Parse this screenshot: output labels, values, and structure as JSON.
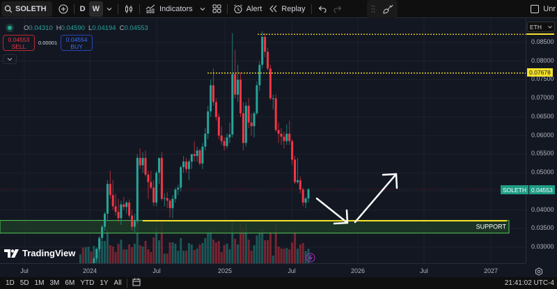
{
  "toolbar": {
    "symbol": "SOLETH",
    "intervals": [
      "D",
      "W"
    ],
    "active_interval": "W",
    "indicators_label": "Indicators",
    "alert_label": "Alert",
    "replay_label": "Replay",
    "right_label": "Unr"
  },
  "legend": {
    "o_label": "O",
    "o_value": "0.04310",
    "h_label": "H",
    "h_value": "0.04590",
    "l_label": "L",
    "l_value": "0.04194",
    "c_label": "C",
    "c_value": "0.04553"
  },
  "trade": {
    "sell_price": "0.04553",
    "sell_label": "SELL",
    "spread": "0.00001",
    "buy_price": "0.04554",
    "buy_label": "BUY"
  },
  "price_axis": {
    "currency": "ETH",
    "ticks": [
      "0.08500",
      "0.08000",
      "0.07500",
      "0.07000",
      "0.06500",
      "0.06000",
      "0.05500",
      "0.05000",
      "0.04000",
      "0.03500",
      "0.03000"
    ],
    "marker_price": "0.07678",
    "current_symbol": "SOLETH",
    "current_price": "0.04553"
  },
  "time_axis": {
    "ticks": [
      "Jul",
      "2024",
      "Jul",
      "2025",
      "Jul",
      "2026",
      "Jul",
      "2027"
    ]
  },
  "bottombar": {
    "ranges": [
      "1D",
      "5D",
      "1M",
      "3M",
      "6M",
      "YTD",
      "1Y",
      "All"
    ],
    "clock": "21:41:02 UTC-4"
  },
  "annotations": {
    "support_label": "SUPPORT",
    "logo_text": "TradingView"
  },
  "colors": {
    "up": "#26a69a",
    "down": "#f23645",
    "support_fill": "#1f3a26",
    "support_border": "#4caf50",
    "level_line": "#f7e22a",
    "background": "#131722"
  },
  "chart_data": {
    "type": "candlestick",
    "title": "SOLETH · 1W",
    "ylabel": "ETH",
    "ylim": [
      0.0275,
      0.0905
    ],
    "x_ticks": [
      "Jul 2023",
      "2024",
      "Jul 2024",
      "2025",
      "Jul 2025",
      "2026",
      "Jul 2026",
      "2027"
    ],
    "horizontal_levels": [
      {
        "price": 0.0872,
        "style": "dotted",
        "color": "#f7e22a"
      },
      {
        "price": 0.07678,
        "style": "dotted",
        "color": "#f7e22a"
      },
      {
        "price": 0.0371,
        "style": "solid",
        "color": "#f7e22a"
      }
    ],
    "support_zone": [
      0.0338,
      0.0372
    ],
    "last": {
      "open": 0.0431,
      "high": 0.0459,
      "low": 0.04194,
      "close": 0.04553
    },
    "candles": [
      [
        0.0215,
        0.0228,
        0.0205,
        0.0222
      ],
      [
        0.0222,
        0.0235,
        0.0215,
        0.0218
      ],
      [
        0.0218,
        0.0231,
        0.021,
        0.0228
      ],
      [
        0.0228,
        0.025,
        0.0222,
        0.0245
      ],
      [
        0.0245,
        0.0262,
        0.0238,
        0.024
      ],
      [
        0.024,
        0.0275,
        0.0236,
        0.027
      ],
      [
        0.027,
        0.03,
        0.0262,
        0.0295
      ],
      [
        0.0295,
        0.033,
        0.0288,
        0.0325
      ],
      [
        0.0325,
        0.036,
        0.0318,
        0.0355
      ],
      [
        0.0355,
        0.0395,
        0.0345,
        0.039
      ],
      [
        0.039,
        0.048,
        0.0375,
        0.047
      ],
      [
        0.047,
        0.0505,
        0.043,
        0.044
      ],
      [
        0.044,
        0.048,
        0.04,
        0.041
      ],
      [
        0.041,
        0.0445,
        0.0385,
        0.0395
      ],
      [
        0.0395,
        0.043,
        0.0368,
        0.0378
      ],
      [
        0.0378,
        0.0425,
        0.036,
        0.0415
      ],
      [
        0.0415,
        0.0435,
        0.04,
        0.0408
      ],
      [
        0.0408,
        0.0425,
        0.039,
        0.042
      ],
      [
        0.042,
        0.0428,
        0.038,
        0.0385
      ],
      [
        0.0385,
        0.04,
        0.0345,
        0.0355
      ],
      [
        0.0355,
        0.039,
        0.034,
        0.037
      ],
      [
        0.037,
        0.055,
        0.0365,
        0.054
      ],
      [
        0.054,
        0.0565,
        0.051,
        0.052
      ],
      [
        0.052,
        0.0555,
        0.05,
        0.054
      ],
      [
        0.054,
        0.056,
        0.049,
        0.0495
      ],
      [
        0.0495,
        0.0505,
        0.043,
        0.0475
      ],
      [
        0.0475,
        0.0505,
        0.0455,
        0.046
      ],
      [
        0.046,
        0.048,
        0.041,
        0.042
      ],
      [
        0.042,
        0.0505,
        0.041,
        0.05
      ],
      [
        0.05,
        0.054,
        0.047,
        0.054
      ],
      [
        0.054,
        0.0555,
        0.0425,
        0.043
      ],
      [
        0.043,
        0.0445,
        0.041,
        0.0432
      ],
      [
        0.0432,
        0.0448,
        0.0405,
        0.0425
      ],
      [
        0.0425,
        0.043,
        0.038,
        0.0405
      ],
      [
        0.0405,
        0.044,
        0.0378,
        0.043
      ],
      [
        0.043,
        0.046,
        0.042,
        0.0455
      ],
      [
        0.0455,
        0.0468,
        0.044,
        0.046
      ],
      [
        0.046,
        0.052,
        0.045,
        0.0515
      ],
      [
        0.0515,
        0.0545,
        0.05,
        0.053
      ],
      [
        0.053,
        0.054,
        0.05,
        0.051
      ],
      [
        0.051,
        0.0535,
        0.048,
        0.053
      ],
      [
        0.053,
        0.055,
        0.051,
        0.055
      ],
      [
        0.055,
        0.0585,
        0.053,
        0.0545
      ],
      [
        0.0545,
        0.057,
        0.053,
        0.056
      ],
      [
        0.056,
        0.0565,
        0.052,
        0.0525
      ],
      [
        0.0525,
        0.058,
        0.051,
        0.057
      ],
      [
        0.057,
        0.062,
        0.056,
        0.0605
      ],
      [
        0.0605,
        0.068,
        0.059,
        0.0665
      ],
      [
        0.0665,
        0.075,
        0.065,
        0.0735
      ],
      [
        0.0735,
        0.078,
        0.068,
        0.069
      ],
      [
        0.069,
        0.07,
        0.064,
        0.065
      ],
      [
        0.065,
        0.066,
        0.059,
        0.06
      ],
      [
        0.06,
        0.0625,
        0.0575,
        0.0585
      ],
      [
        0.0585,
        0.0595,
        0.056,
        0.0572
      ],
      [
        0.0572,
        0.0605,
        0.0565,
        0.0595
      ],
      [
        0.0595,
        0.0635,
        0.058,
        0.0603
      ],
      [
        0.0603,
        0.0875,
        0.0595,
        0.0765
      ],
      [
        0.0765,
        0.083,
        0.07,
        0.071
      ],
      [
        0.071,
        0.079,
        0.069,
        0.075
      ],
      [
        0.075,
        0.077,
        0.065,
        0.066
      ],
      [
        0.066,
        0.069,
        0.056,
        0.058
      ],
      [
        0.058,
        0.069,
        0.057,
        0.068
      ],
      [
        0.068,
        0.07,
        0.062,
        0.0635
      ],
      [
        0.0635,
        0.066,
        0.06,
        0.0625
      ],
      [
        0.0625,
        0.0665,
        0.0595,
        0.066
      ],
      [
        0.066,
        0.0745,
        0.0655,
        0.0735
      ],
      [
        0.0735,
        0.08,
        0.072,
        0.079
      ],
      [
        0.079,
        0.088,
        0.078,
        0.0865
      ],
      [
        0.0865,
        0.0875,
        0.081,
        0.0825
      ],
      [
        0.0825,
        0.0835,
        0.0775,
        0.078
      ],
      [
        0.078,
        0.079,
        0.0695,
        0.07
      ],
      [
        0.07,
        0.071,
        0.067,
        0.07
      ],
      [
        0.07,
        0.071,
        0.061,
        0.0615
      ],
      [
        0.0615,
        0.0635,
        0.058,
        0.0605
      ],
      [
        0.0605,
        0.062,
        0.0575,
        0.0597
      ],
      [
        0.0597,
        0.061,
        0.0565,
        0.0585
      ],
      [
        0.0585,
        0.063,
        0.0575,
        0.0605
      ],
      [
        0.0605,
        0.064,
        0.0575,
        0.0585
      ],
      [
        0.0585,
        0.059,
        0.052,
        0.0535
      ],
      [
        0.0535,
        0.0545,
        0.047,
        0.0475
      ],
      [
        0.0475,
        0.054,
        0.047,
        0.048
      ],
      [
        0.048,
        0.049,
        0.0445,
        0.0455
      ],
      [
        0.0455,
        0.046,
        0.041,
        0.042
      ],
      [
        0.042,
        0.0435,
        0.0405,
        0.0431
      ],
      [
        0.0431,
        0.0459,
        0.04194,
        0.04553
      ]
    ]
  }
}
